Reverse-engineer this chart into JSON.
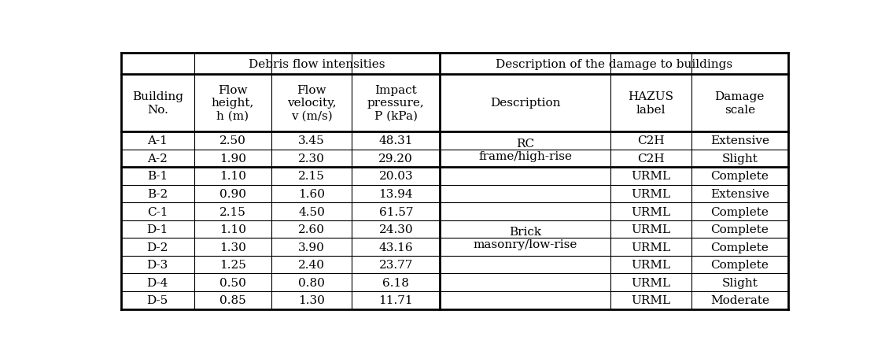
{
  "rows": [
    [
      "A-1",
      "2.50",
      "3.45",
      "48.31",
      "RC",
      "C2H",
      "Extensive"
    ],
    [
      "A-2",
      "1.90",
      "2.30",
      "29.20",
      "frame/high-rise",
      "C2H",
      "Slight"
    ],
    [
      "B-1",
      "1.10",
      "2.15",
      "20.03",
      "",
      "URML",
      "Complete"
    ],
    [
      "B-2",
      "0.90",
      "1.60",
      "13.94",
      "",
      "URML",
      "Extensive"
    ],
    [
      "C-1",
      "2.15",
      "4.50",
      "61.57",
      "",
      "URML",
      "Complete"
    ],
    [
      "D-1",
      "1.10",
      "2.60",
      "24.30",
      "Brick",
      "URML",
      "Complete"
    ],
    [
      "D-2",
      "1.30",
      "3.90",
      "43.16",
      "masonry/low-rise",
      "URML",
      "Complete"
    ],
    [
      "D-3",
      "1.25",
      "2.40",
      "23.77",
      "",
      "URML",
      "Complete"
    ],
    [
      "D-4",
      "0.50",
      "0.80",
      "6.18",
      "",
      "URML",
      "Slight"
    ],
    [
      "D-5",
      "0.85",
      "1.30",
      "11.71",
      "",
      "URML",
      "Moderate"
    ]
  ],
  "header1_labels": [
    "Debris flow intensities",
    "Description of the damage to buildings"
  ],
  "header2_labels": [
    "Building\nNo.",
    "Flow\nheight,\nh (m)",
    "Flow\nvelocity,\nv (m/s)",
    "Impact\npressure,\nP (kPa)",
    "Description",
    "HAZUS\nlabel",
    "Damage\nscale"
  ],
  "rc_text": "RC\nframe/high-rise",
  "brick_text": "Brick\nmasonry/low-rise",
  "font_size": 11.0,
  "bg_color": "#ffffff",
  "line_color": "#000000"
}
